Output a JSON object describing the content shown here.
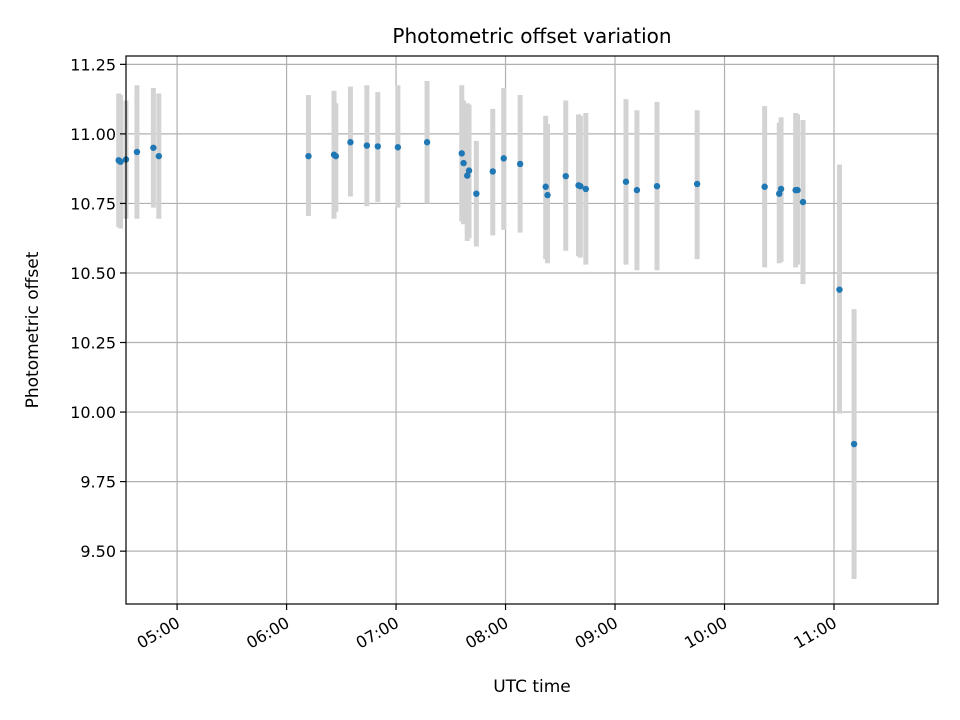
{
  "chart_data": {
    "type": "scatter",
    "title": "Photometric offset variation",
    "xlabel": "UTC time",
    "ylabel": "Photometric offset",
    "x_ticks": [
      "05:00",
      "06:00",
      "07:00",
      "08:00",
      "09:00",
      "10:00",
      "11:00"
    ],
    "y_ticks": [
      "9.50",
      "9.75",
      "10.00",
      "10.25",
      "10.50",
      "10.75",
      "11.00",
      "11.25"
    ],
    "xlim": [
      "04:32",
      "11:57"
    ],
    "ylim": [
      9.31,
      11.28
    ],
    "grid": true,
    "marker_color": "#1f77b4",
    "errorbar_color": "#d3d3d3",
    "points": [
      {
        "t": "04:28",
        "y": 10.905,
        "lo": 10.665,
        "hi": 11.145
      },
      {
        "t": "04:29",
        "y": 10.9,
        "lo": 10.66,
        "hi": 11.14
      },
      {
        "t": "04:32",
        "y": 10.908,
        "lo": 10.695,
        "hi": 11.12
      },
      {
        "t": "04:38",
        "y": 10.935,
        "lo": 10.695,
        "hi": 11.175
      },
      {
        "t": "04:47",
        "y": 10.95,
        "lo": 10.735,
        "hi": 11.165
      },
      {
        "t": "04:50",
        "y": 10.92,
        "lo": 10.695,
        "hi": 11.145
      },
      {
        "t": "06:12",
        "y": 10.92,
        "lo": 10.705,
        "hi": 11.14
      },
      {
        "t": "06:26",
        "y": 10.925,
        "lo": 10.695,
        "hi": 11.155
      },
      {
        "t": "06:27",
        "y": 10.92,
        "lo": 10.72,
        "hi": 11.11
      },
      {
        "t": "06:35",
        "y": 10.97,
        "lo": 10.775,
        "hi": 11.17
      },
      {
        "t": "06:44",
        "y": 10.958,
        "lo": 10.74,
        "hi": 11.175
      },
      {
        "t": "06:50",
        "y": 10.955,
        "lo": 10.755,
        "hi": 11.15
      },
      {
        "t": "07:01",
        "y": 10.952,
        "lo": 10.735,
        "hi": 11.175
      },
      {
        "t": "07:17",
        "y": 10.97,
        "lo": 10.75,
        "hi": 11.19
      },
      {
        "t": "07:36",
        "y": 10.93,
        "lo": 10.685,
        "hi": 11.175
      },
      {
        "t": "07:37",
        "y": 10.895,
        "lo": 10.675,
        "hi": 11.12
      },
      {
        "t": "07:39",
        "y": 10.85,
        "lo": 10.615,
        "hi": 11.11
      },
      {
        "t": "07:40",
        "y": 10.868,
        "lo": 10.625,
        "hi": 11.105
      },
      {
        "t": "07:44",
        "y": 10.785,
        "lo": 10.595,
        "hi": 10.975
      },
      {
        "t": "07:53",
        "y": 10.865,
        "lo": 10.635,
        "hi": 11.09
      },
      {
        "t": "07:59",
        "y": 10.912,
        "lo": 10.655,
        "hi": 11.165
      },
      {
        "t": "08:08",
        "y": 10.892,
        "lo": 10.645,
        "hi": 11.14
      },
      {
        "t": "08:22",
        "y": 10.81,
        "lo": 10.55,
        "hi": 11.065
      },
      {
        "t": "08:23",
        "y": 10.78,
        "lo": 10.535,
        "hi": 11.035
      },
      {
        "t": "08:33",
        "y": 10.848,
        "lo": 10.58,
        "hi": 11.12
      },
      {
        "t": "08:40",
        "y": 10.815,
        "lo": 10.56,
        "hi": 11.07
      },
      {
        "t": "08:41",
        "y": 10.812,
        "lo": 10.555,
        "hi": 11.065
      },
      {
        "t": "08:44",
        "y": 10.802,
        "lo": 10.53,
        "hi": 11.075
      },
      {
        "t": "09:06",
        "y": 10.828,
        "lo": 10.53,
        "hi": 11.125
      },
      {
        "t": "09:12",
        "y": 10.798,
        "lo": 10.51,
        "hi": 11.085
      },
      {
        "t": "09:23",
        "y": 10.812,
        "lo": 10.51,
        "hi": 11.115
      },
      {
        "t": "09:45",
        "y": 10.82,
        "lo": 10.55,
        "hi": 11.085
      },
      {
        "t": "10:22",
        "y": 10.81,
        "lo": 10.52,
        "hi": 11.1
      },
      {
        "t": "10:30",
        "y": 10.785,
        "lo": 10.535,
        "hi": 11.04
      },
      {
        "t": "10:31",
        "y": 10.802,
        "lo": 10.54,
        "hi": 11.06
      },
      {
        "t": "10:39",
        "y": 10.798,
        "lo": 10.52,
        "hi": 11.075
      },
      {
        "t": "10:40",
        "y": 10.798,
        "lo": 10.53,
        "hi": 11.07
      },
      {
        "t": "10:43",
        "y": 10.755,
        "lo": 10.46,
        "hi": 11.05
      },
      {
        "t": "11:03",
        "y": 10.44,
        "lo": 9.995,
        "hi": 10.89
      },
      {
        "t": "11:11",
        "y": 9.885,
        "lo": 9.4,
        "hi": 10.37
      }
    ]
  }
}
